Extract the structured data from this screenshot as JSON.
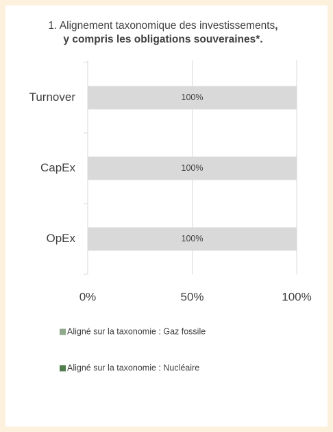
{
  "chart_data": {
    "type": "hbar_stacked",
    "title_segments": [
      {
        "text": "1. Alignement taxonomique des investissements",
        "bold": false
      },
      {
        "text": ", y compris les obligations souveraines*.",
        "bold": true
      }
    ],
    "categories": [
      "Turnover",
      "CapEx",
      "OpEx"
    ],
    "series": [
      {
        "name": "Aligné sur la taxonomie : Gaz fossile",
        "color": "#8faa8b",
        "values": [
          0,
          0,
          0
        ]
      },
      {
        "name": "Aligné sur la taxonomie : Nucléaire",
        "color": "#4f7d4c",
        "values": [
          0,
          0,
          0
        ]
      },
      {
        "color": "#d9d9d9",
        "values": [
          100,
          100,
          100
        ],
        "value_labels": [
          "100%",
          "100%",
          "100%"
        ]
      }
    ],
    "xlim": [
      0,
      100
    ],
    "xticks": [
      {
        "value": 0,
        "label": "0%"
      },
      {
        "value": 50,
        "label": "50%"
      },
      {
        "value": 100,
        "label": "100%"
      }
    ],
    "grid": true
  }
}
